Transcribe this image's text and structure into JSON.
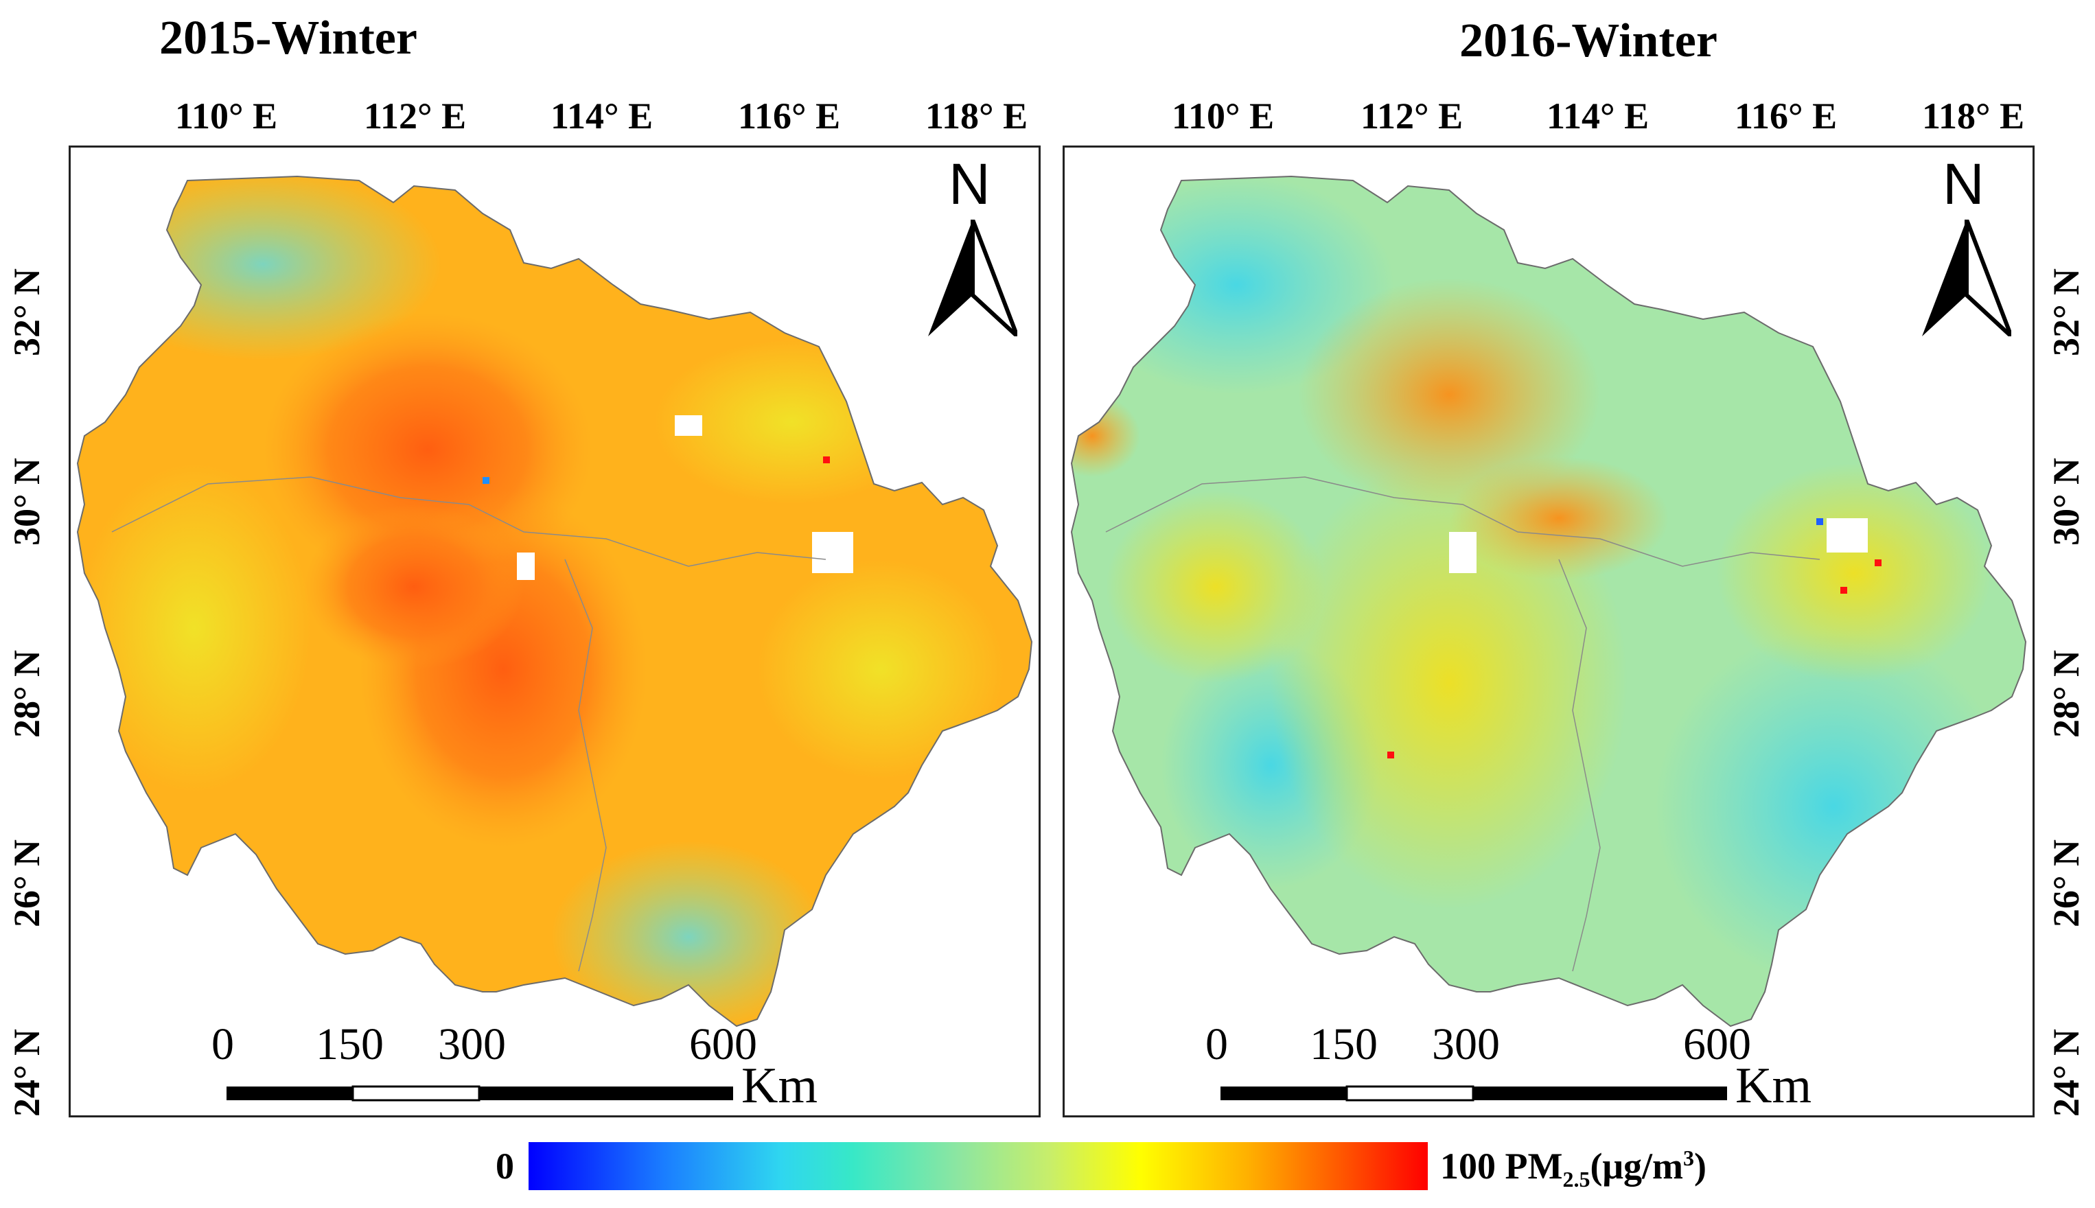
{
  "panels": [
    {
      "title": "2015-Winter",
      "lon_labels": [
        "110° E",
        "112° E",
        "114° E",
        "116° E",
        "118° E"
      ],
      "lat_labels": [
        "32° N",
        "30° N",
        "28° N",
        "26° N",
        "24° N"
      ],
      "north": "N",
      "scale": {
        "ticks": [
          "0",
          "150",
          "300",
          "600"
        ],
        "unit": "Km"
      },
      "dominant_colors": [
        "#ff9a1a",
        "#ff5a10",
        "#f0e020",
        "#9be68a"
      ]
    },
    {
      "title": "2016-Winter",
      "lon_labels": [
        "110° E",
        "112° E",
        "114° E",
        "116° E",
        "118° E"
      ],
      "lat_labels": [
        "32° N",
        "30° N",
        "28° N",
        "26° N",
        "24° N"
      ],
      "north": "N",
      "scale": {
        "ticks": [
          "0",
          "150",
          "300",
          "600"
        ],
        "unit": "Km"
      },
      "dominant_colors": [
        "#9be6b0",
        "#58d8e8",
        "#f0e020",
        "#ff8a10"
      ]
    }
  ],
  "colorbar": {
    "min_label": "0",
    "max_label": "100",
    "variable": "PM",
    "subscript": "2.5",
    "unit_open": "(μg/m",
    "unit_sup": "3",
    "unit_close": ")"
  }
}
